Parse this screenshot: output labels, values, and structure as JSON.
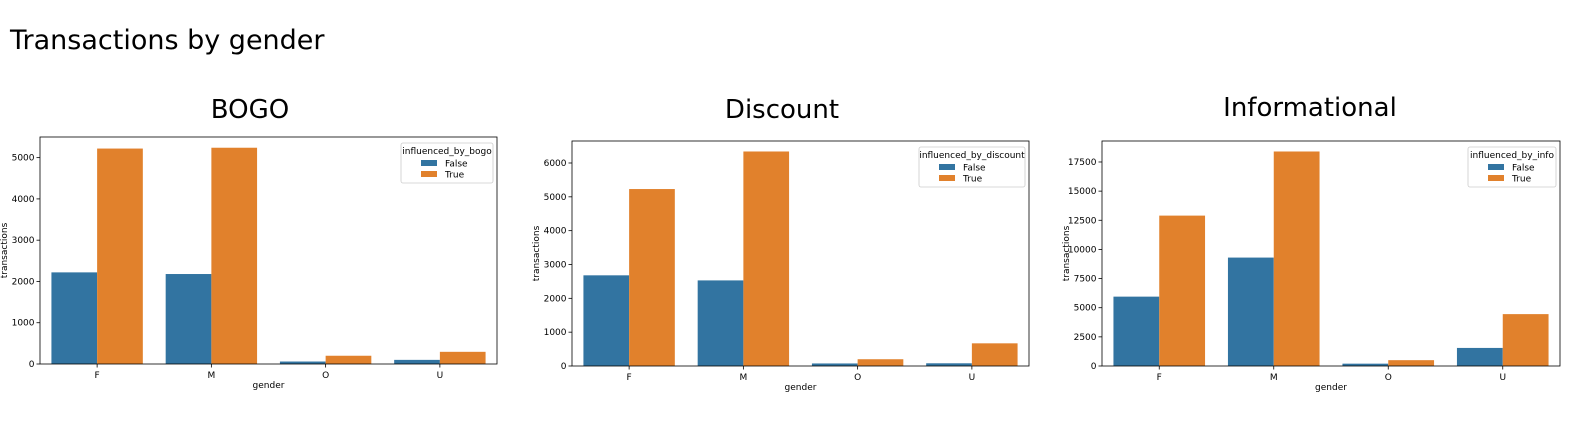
{
  "page_title": "Transactions by gender",
  "colors": {
    "false": "#3274a1",
    "true": "#e1812c"
  },
  "chart_data": [
    {
      "type": "bar",
      "title": "BOGO",
      "xlabel": "gender",
      "ylabel": "transactions",
      "categories": [
        "F",
        "M",
        "O",
        "U"
      ],
      "ylim": [
        0,
        5500
      ],
      "yticks": [
        0,
        1000,
        2000,
        3000,
        4000,
        5000
      ],
      "legend_title": "influenced_by_bogo",
      "legend_position": "top-right",
      "series": [
        {
          "name": "False",
          "values": [
            2220,
            2180,
            60,
            100
          ]
        },
        {
          "name": "True",
          "values": [
            5220,
            5240,
            200,
            295
          ]
        }
      ]
    },
    {
      "type": "bar",
      "title": "Discount",
      "xlabel": "gender",
      "ylabel": "transactions",
      "categories": [
        "F",
        "M",
        "O",
        "U"
      ],
      "ylim": [
        0,
        6650
      ],
      "yticks": [
        0,
        1000,
        2000,
        3000,
        4000,
        5000,
        6000
      ],
      "legend_title": "influenced_by_discount",
      "legend_position": "top-right",
      "series": [
        {
          "name": "False",
          "values": [
            2680,
            2530,
            75,
            80
          ]
        },
        {
          "name": "True",
          "values": [
            5230,
            6340,
            200,
            670
          ]
        }
      ]
    },
    {
      "type": "bar",
      "title": "Informational",
      "xlabel": "gender",
      "ylabel": "transactions",
      "categories": [
        "F",
        "M",
        "O",
        "U"
      ],
      "ylim": [
        0,
        19300
      ],
      "yticks": [
        0,
        2500,
        5000,
        7500,
        10000,
        12500,
        15000,
        17500
      ],
      "legend_title": "influenced_by_info",
      "legend_position": "top-right",
      "series": [
        {
          "name": "False",
          "values": [
            5950,
            9300,
            200,
            1550
          ]
        },
        {
          "name": "True",
          "values": [
            12900,
            18400,
            500,
            4450
          ]
        }
      ]
    }
  ]
}
